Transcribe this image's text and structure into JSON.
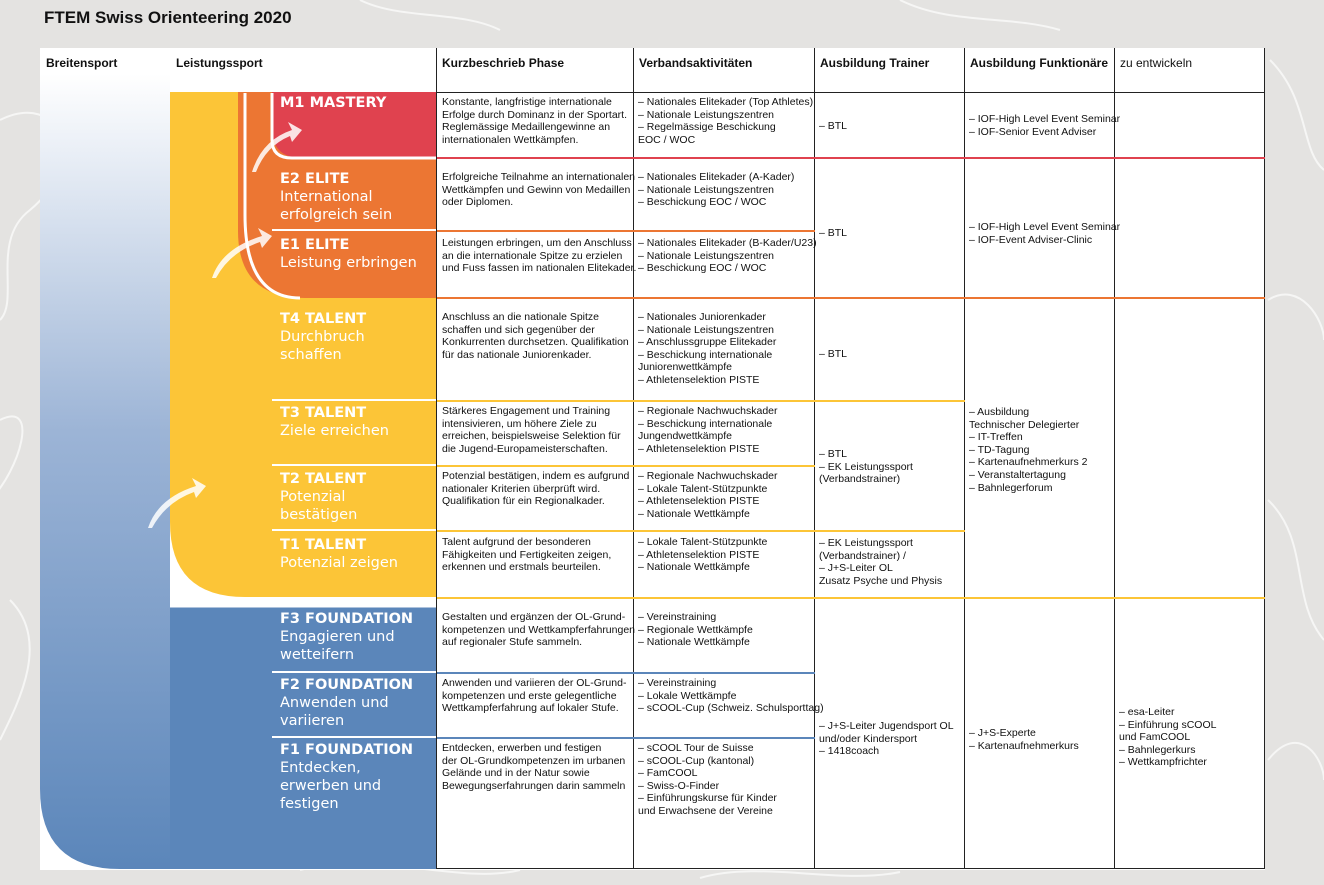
{
  "title": "FTEM Swiss Orienteering 2020",
  "colors": {
    "mastery": "#e0424f",
    "elite": "#ec7633",
    "talent": "#fcc537",
    "foundation": "#5b86ba",
    "breitensport_top": "#ffffff",
    "breitensport_bottom": "#5b86ba"
  },
  "headers": {
    "breitensport": "Breitensport",
    "leistungssport": "Leistungssport",
    "kurzbeschrieb": "Kurzbeschrieb Phase",
    "verband": "Verbandsaktivitäten",
    "trainer": "Ausbildung Trainer",
    "funktionaere": "Ausbildung Funktionäre",
    "entwickeln": "zu entwickeln"
  },
  "phases": [
    {
      "code": "M1 MASTERY",
      "sub": "",
      "desc": "Konstante, langfristige internationale\nErfolge durch Dominanz in der Sportart.\nReglemässige Medaillengewinne an\ninternationalen Wettkämpfen.",
      "verband": "– Nationales Elitekader (Top Athletes)\n– Nationale Leistungszentren\n– Regelmässige Beschickung\n   EOC / WOC"
    },
    {
      "code": "E2 ELITE",
      "sub": "International\nerfolgreich sein",
      "desc": "Erfolgreiche Teilnahme an internationalen\nWettkämpfen und Gewinn von Medaillen\noder Diplomen.",
      "verband": "– Nationales Elitekader (A-Kader)\n– Nationale Leistungszentren\n– Beschickung EOC / WOC"
    },
    {
      "code": "E1 ELITE",
      "sub": "Leistung erbringen",
      "desc": "Leistungen erbringen, um den Anschluss\nan die internationale Spitze zu erzielen\nund Fuss fassen im nationalen Elitekader.",
      "verband": "– Nationales Elitekader (B-Kader/U23)\n– Nationale Leistungszentren\n– Beschickung EOC / WOC"
    },
    {
      "code": "T4 TALENT",
      "sub": "Durchbruch\nschaffen",
      "desc": "Anschluss an die nationale Spitze\nschaffen und sich gegenüber der\nKonkurrenten durchsetzen. Qualifikation\nfür das nationale Juniorenkader.",
      "verband": "– Nationales Juniorenkader\n– Nationale Leistungszentren\n– Anschlussgruppe Elitekader\n– Beschickung internationale\n   Juniorenwettkämpfe\n– Athletenselektion PISTE"
    },
    {
      "code": "T3 TALENT",
      "sub": "Ziele erreichen",
      "desc": "Stärkeres Engagement und Training\nintensivieren, um höhere Ziele zu\nerreichen, beispielsweise Selektion für\ndie Jugend-Europameisterschaften.",
      "verband": "– Regionale Nachwuchskader\n– Beschickung internationale\n   Jungendwettkämpfe\n– Athletenselektion PISTE"
    },
    {
      "code": "T2 TALENT",
      "sub": "Potenzial\nbestätigen",
      "desc": "Potenzial bestätigen, indem es aufgrund\nnationaler Kriterien überprüft wird.\nQualifikation für ein Regionalkader.",
      "verband": "– Regionale Nachwuchskader\n– Lokale Talent-Stützpunkte\n– Athletenselektion PISTE\n– Nationale Wettkämpfe"
    },
    {
      "code": "T1 TALENT",
      "sub": "Potenzial zeigen",
      "desc": "Talent aufgrund der besonderen\nFähigkeiten und Fertigkeiten zeigen,\nerkennen und erstmals beurteilen.",
      "verband": "– Lokale Talent-Stützpunkte\n– Athletenselektion PISTE\n– Nationale Wettkämpfe"
    },
    {
      "code": "F3 FOUNDATION",
      "sub": "Engagieren und\nwetteifern",
      "desc": "Gestalten und ergänzen der OL-Grund-\nkompetenzen und Wettkampferfahrungen\nauf regionaler Stufe sammeln.",
      "verband": "– Vereinstraining\n– Regionale Wettkämpfe\n– Nationale Wettkämpfe"
    },
    {
      "code": "F2 FOUNDATION",
      "sub": "Anwenden und\nvariieren",
      "desc": "Anwenden und variieren der OL-Grund-\nkompetenzen und erste gelegentliche\nWettkampferfahrung auf lokaler Stufe.",
      "verband": "– Vereinstraining\n– Lokale Wettkämpfe\n– sCOOL-Cup (Schweiz. Schulsporttag)"
    },
    {
      "code": "F1 FOUNDATION",
      "sub": "Entdecken,\nerwerben und\nfestigen",
      "desc": "Entdecken, erwerben und festigen\nder OL-Grundkompetenzen im urbanen\nGelände und in der Natur sowie\nBewegungserfahrungen darin sammeln",
      "verband": "– sCOOL Tour de Suisse\n– sCOOL-Cup (kantonal)\n– FamCOOL\n– Swiss-O-Finder\n– Einführungskurse für Kinder\n   und Erwachsene der Vereine"
    }
  ],
  "trainer": {
    "m1": "– BTL",
    "elite": "– BTL",
    "t4": "– BTL",
    "t3t2": "– BTL\n– EK Leistungssport\n   (Verbandstrainer)",
    "t1": "– EK Leistungssport\n   (Verbandstrainer) /\n– J+S-Leiter OL\n   Zusatz Psyche und Physis",
    "foundation": "– J+S-Leiter Jugendsport OL\n   und/oder Kindersport\n– 1418coach"
  },
  "funktionaere": {
    "m1": "– IOF-High Level Event Seminar\n– IOF-Senior Event Adviser",
    "elite": "– IOF-High Level Event Seminar\n– IOF-Event Adviser-Clinic",
    "talent": "– Ausbildung\n   Technischer Delegierter\n– IT-Treffen\n– TD-Tagung\n– Kartenaufnehmerkurs 2\n– Veranstaltertagung\n– Bahnlegerforum",
    "foundation": "– J+S-Experte\n– Kartenaufnehmerkurs"
  },
  "entwickeln": {
    "foundation": "– esa-Leiter\n– Einführung sCOOL\n   und FamCOOL\n– Bahnlegerkurs\n– Wettkampfrichter"
  }
}
